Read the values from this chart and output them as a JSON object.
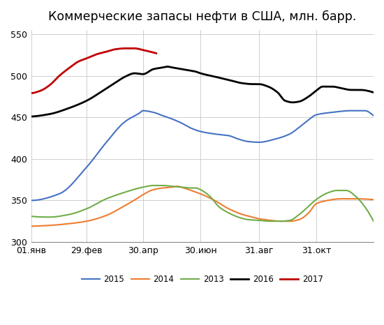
{
  "title": "Коммерческие запасы нефти в США, млн. барр.",
  "ylim": [
    300,
    555
  ],
  "yticks": [
    300,
    350,
    400,
    450,
    500,
    550
  ],
  "xtick_labels": [
    "01.янв",
    "29.фев",
    "30.апр",
    "30.июн",
    "31.авг",
    "31.окт"
  ],
  "xtick_positions": [
    0,
    59,
    119,
    180,
    242,
    303
  ],
  "colors": {
    "2015": "#4472C4",
    "2014": "#ED7D31",
    "2013": "#70AD47",
    "2016": "#000000",
    "2017": "#C00000"
  },
  "ctrl_2015": [
    [
      0,
      350
    ],
    [
      30,
      358
    ],
    [
      59,
      390
    ],
    [
      80,
      420
    ],
    [
      100,
      445
    ],
    [
      115,
      455
    ],
    [
      119,
      458
    ],
    [
      130,
      456
    ],
    [
      140,
      452
    ],
    [
      150,
      448
    ],
    [
      160,
      443
    ],
    [
      170,
      437
    ],
    [
      180,
      433
    ],
    [
      195,
      430
    ],
    [
      210,
      428
    ],
    [
      220,
      424
    ],
    [
      230,
      421
    ],
    [
      242,
      420
    ],
    [
      260,
      424
    ],
    [
      275,
      430
    ],
    [
      285,
      438
    ],
    [
      295,
      447
    ],
    [
      303,
      453
    ],
    [
      320,
      456
    ],
    [
      340,
      458
    ],
    [
      355,
      458
    ],
    [
      364,
      452
    ]
  ],
  "ctrl_2014": [
    [
      0,
      319
    ],
    [
      20,
      320
    ],
    [
      40,
      322
    ],
    [
      59,
      325
    ],
    [
      80,
      332
    ],
    [
      100,
      344
    ],
    [
      115,
      354
    ],
    [
      119,
      357
    ],
    [
      130,
      363
    ],
    [
      140,
      365
    ],
    [
      150,
      366
    ],
    [
      155,
      367
    ],
    [
      165,
      364
    ],
    [
      175,
      360
    ],
    [
      180,
      358
    ],
    [
      195,
      350
    ],
    [
      210,
      340
    ],
    [
      225,
      333
    ],
    [
      235,
      330
    ],
    [
      242,
      328
    ],
    [
      255,
      326
    ],
    [
      265,
      325
    ],
    [
      275,
      325
    ],
    [
      285,
      327
    ],
    [
      295,
      335
    ],
    [
      303,
      346
    ],
    [
      315,
      350
    ],
    [
      330,
      352
    ],
    [
      345,
      352
    ],
    [
      364,
      351
    ]
  ],
  "ctrl_2013": [
    [
      0,
      331
    ],
    [
      20,
      330
    ],
    [
      40,
      333
    ],
    [
      59,
      340
    ],
    [
      80,
      352
    ],
    [
      100,
      360
    ],
    [
      115,
      365
    ],
    [
      119,
      366
    ],
    [
      130,
      368
    ],
    [
      140,
      368
    ],
    [
      150,
      367
    ],
    [
      160,
      366
    ],
    [
      170,
      365
    ],
    [
      175,
      365
    ],
    [
      180,
      363
    ],
    [
      190,
      355
    ],
    [
      200,
      342
    ],
    [
      210,
      335
    ],
    [
      220,
      330
    ],
    [
      230,
      327
    ],
    [
      242,
      326
    ],
    [
      255,
      325
    ],
    [
      265,
      325
    ],
    [
      275,
      326
    ],
    [
      285,
      333
    ],
    [
      295,
      343
    ],
    [
      303,
      351
    ],
    [
      315,
      359
    ],
    [
      325,
      362
    ],
    [
      335,
      362
    ],
    [
      345,
      355
    ],
    [
      355,
      342
    ],
    [
      364,
      325
    ]
  ],
  "ctrl_2016": [
    [
      0,
      451
    ],
    [
      20,
      454
    ],
    [
      40,
      461
    ],
    [
      59,
      470
    ],
    [
      75,
      481
    ],
    [
      90,
      492
    ],
    [
      100,
      499
    ],
    [
      110,
      503
    ],
    [
      119,
      502
    ],
    [
      130,
      508
    ],
    [
      140,
      510
    ],
    [
      145,
      511
    ],
    [
      150,
      510
    ],
    [
      155,
      509
    ],
    [
      165,
      507
    ],
    [
      175,
      505
    ],
    [
      180,
      503
    ],
    [
      195,
      499
    ],
    [
      210,
      495
    ],
    [
      225,
      491
    ],
    [
      235,
      490
    ],
    [
      242,
      490
    ],
    [
      252,
      487
    ],
    [
      262,
      480
    ],
    [
      270,
      470
    ],
    [
      278,
      468
    ],
    [
      285,
      469
    ],
    [
      295,
      475
    ],
    [
      303,
      482
    ],
    [
      310,
      487
    ],
    [
      320,
      487
    ],
    [
      330,
      485
    ],
    [
      340,
      483
    ],
    [
      350,
      483
    ],
    [
      364,
      480
    ]
  ],
  "ctrl_2017": [
    [
      0,
      479
    ],
    [
      10,
      482
    ],
    [
      20,
      489
    ],
    [
      30,
      500
    ],
    [
      40,
      509
    ],
    [
      50,
      517
    ],
    [
      59,
      521
    ],
    [
      70,
      526
    ],
    [
      80,
      529
    ],
    [
      90,
      532
    ],
    [
      100,
      533
    ],
    [
      110,
      533
    ],
    [
      119,
      531
    ],
    [
      130,
      528
    ]
  ],
  "x_end_2017": 133,
  "x_max": 364
}
